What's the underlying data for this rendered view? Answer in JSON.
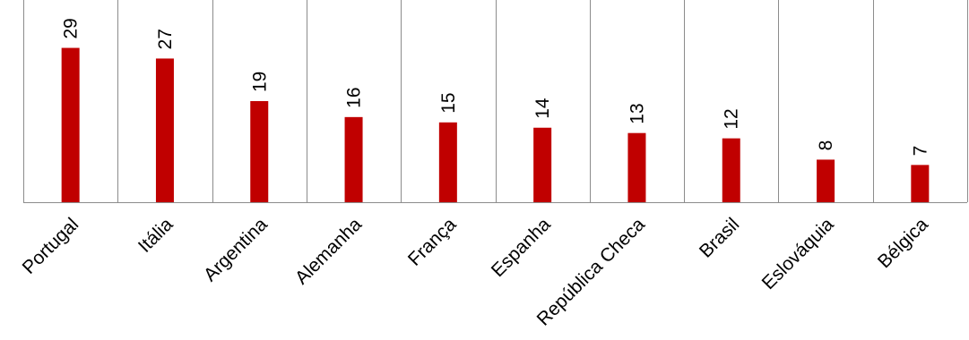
{
  "chart_data": {
    "type": "bar",
    "title": "",
    "xlabel": "",
    "ylabel": "",
    "categories": [
      "Portugal",
      "Itália",
      "Argentina",
      "Alemanha",
      "França",
      "Espanha",
      "República Checa",
      "Brasil",
      "Eslováquia",
      "Bélgica"
    ],
    "values": [
      29,
      27,
      19,
      16,
      15,
      14,
      13,
      12,
      8,
      7
    ],
    "ylim": [
      0,
      38
    ],
    "grid": "vertical category separators",
    "legend": "none",
    "data_labels": "rotated above bars",
    "colors": {
      "bar": "#C00000",
      "grid": "#8C8C8C",
      "axis": "#8C8C8C"
    }
  }
}
